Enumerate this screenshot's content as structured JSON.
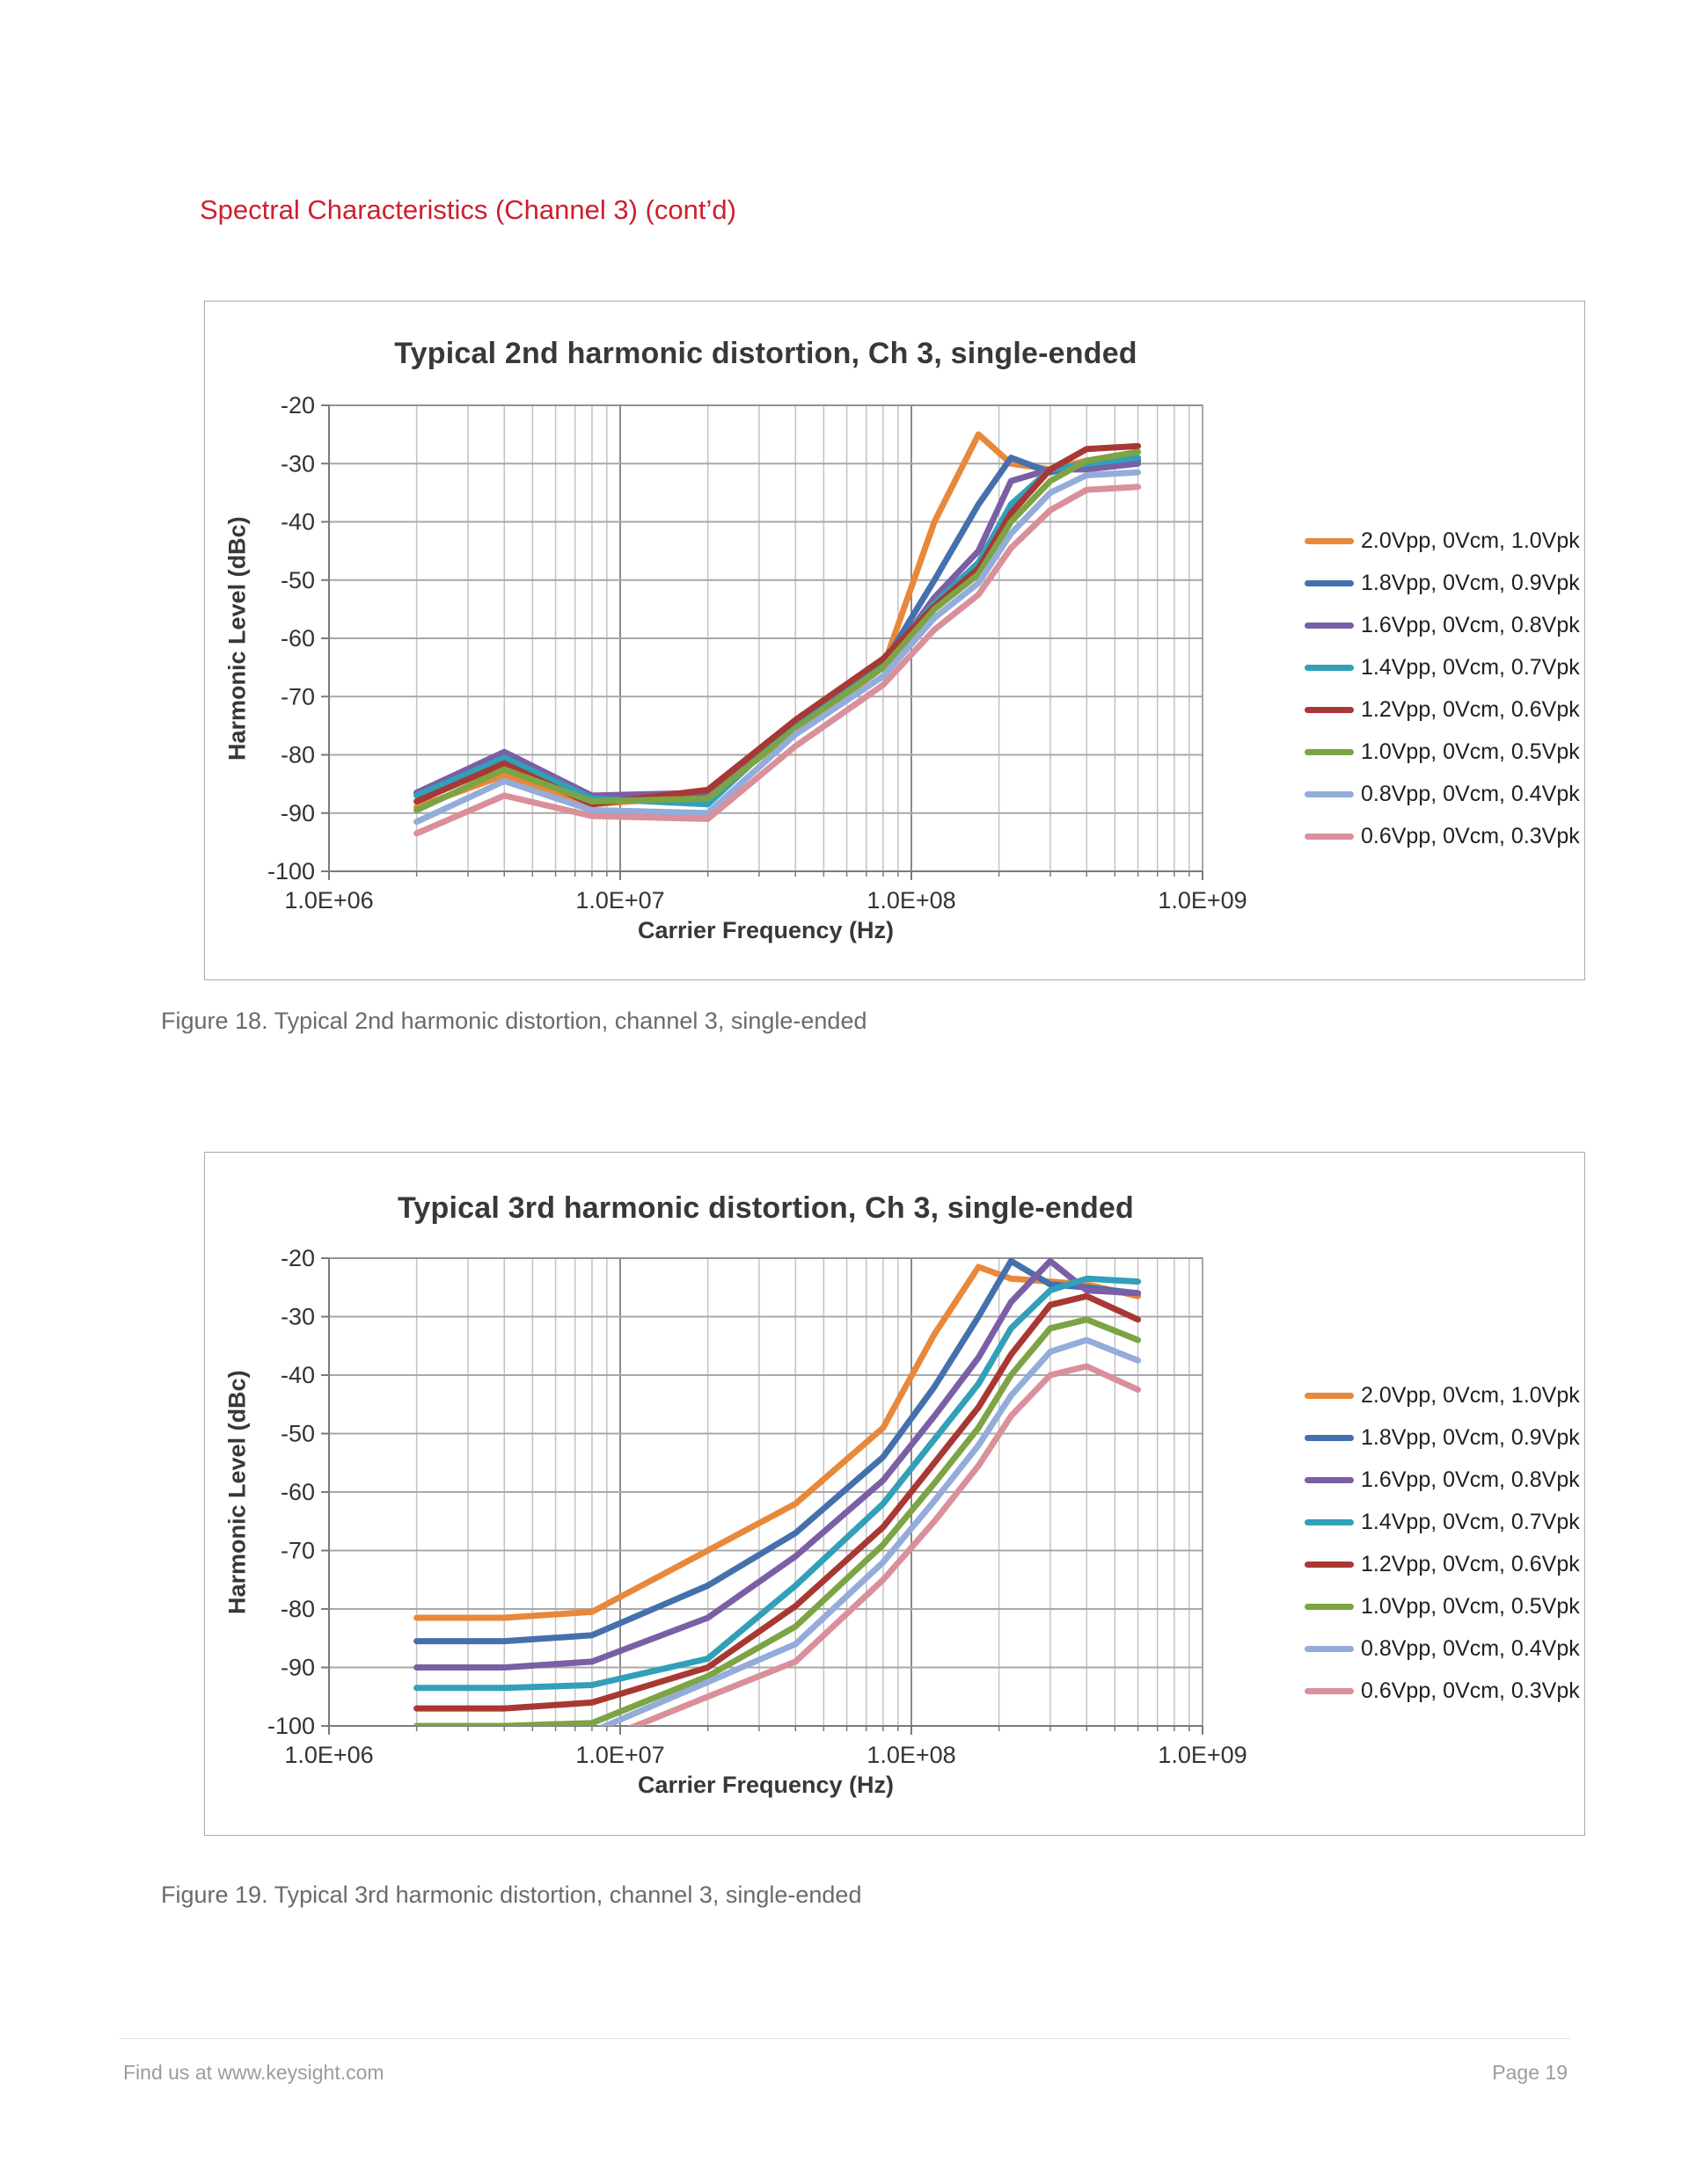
{
  "page": {
    "heading": "Spectral Characteristics (Channel 3) (cont’d)",
    "captions": [
      "Figure 18. Typical 2nd harmonic distortion, channel 3, single-ended",
      "Figure 19. Typical 3rd harmonic distortion, channel 3, single-ended"
    ],
    "footer_left": "Find us at www.keysight.com",
    "footer_right": "Page 19",
    "heading_color": "#CE1F2E",
    "caption_color": "#6A6A6A",
    "footer_color": "#9C9C9C"
  },
  "chart_data": [
    {
      "type": "line",
      "title": "Typical 2nd harmonic distortion, Ch 3, single-ended",
      "xlabel": "Carrier Frequency (Hz)",
      "ylabel": "Harmonic Level (dBc)",
      "x_scale": "log",
      "xlim": [
        1000000,
        1000000000
      ],
      "ylim": [
        -100,
        -20
      ],
      "grid": true,
      "legend_position": "right",
      "x_tick_values": [
        1000000,
        10000000,
        100000000,
        1000000000
      ],
      "x_tick_labels": [
        "1.0E+06",
        "1.0E+07",
        "1.0E+08",
        "1.0E+09"
      ],
      "y_tick_values": [
        -20,
        -30,
        -40,
        -50,
        -60,
        -70,
        -80,
        -90,
        -100
      ],
      "y_tick_labels": [
        "-20",
        "-30",
        "-40",
        "-50",
        "-60",
        "-70",
        "-80",
        "-90",
        "-100"
      ],
      "x": [
        2000000,
        4000000,
        8000000,
        20000000,
        40000000,
        80000000,
        120000000,
        170000000,
        220000000,
        300000000,
        400000000,
        600000000
      ],
      "series": [
        {
          "name": "2.0Vpp, 0Vcm, 1.0Vpk",
          "color": "#E8883A",
          "values": [
            -89,
            -83.5,
            -88.5,
            -87,
            -76,
            -65,
            -40,
            -25,
            -30,
            -31,
            -29.5,
            -29
          ]
        },
        {
          "name": "1.8Vpp, 0Vcm, 0.9Vpk",
          "color": "#4470AD",
          "values": [
            -86.5,
            -80,
            -87.5,
            -87,
            -74.5,
            -64.5,
            -50,
            -37,
            -29,
            -31.5,
            -30,
            -29.5
          ]
        },
        {
          "name": "1.6Vpp, 0Vcm, 0.8Vpk",
          "color": "#7B5FA5",
          "values": [
            -86.5,
            -79.5,
            -87,
            -86.5,
            -75,
            -65,
            -53,
            -45,
            -33,
            -31,
            -31,
            -30
          ]
        },
        {
          "name": "1.4Vpp, 0Vcm, 0.7Vpk",
          "color": "#31A0B8",
          "values": [
            -87,
            -80.5,
            -87.5,
            -88.5,
            -74.5,
            -64,
            -54,
            -47,
            -37,
            -31,
            -30,
            -29
          ]
        },
        {
          "name": "1.2Vpp, 0Vcm, 0.6Vpk",
          "color": "#A83833",
          "values": [
            -88,
            -81.5,
            -88.5,
            -86,
            -74,
            -63.5,
            -54.5,
            -48,
            -38.5,
            -31,
            -27.5,
            -27
          ]
        },
        {
          "name": "1.0Vpp, 0Vcm, 0.5Vpk",
          "color": "#7CA444",
          "values": [
            -89.5,
            -82.5,
            -88,
            -87.5,
            -75.5,
            -65,
            -55,
            -49,
            -40,
            -33,
            -29.5,
            -28
          ]
        },
        {
          "name": "0.8Vpp, 0Vcm, 0.4Vpk",
          "color": "#94ACD9",
          "values": [
            -91.5,
            -84.5,
            -89.5,
            -90,
            -76.5,
            -66.5,
            -56.5,
            -50.5,
            -42,
            -35,
            -32,
            -31.5
          ]
        },
        {
          "name": "0.6Vpp, 0Vcm, 0.3Vpk",
          "color": "#D9909A",
          "values": [
            -93.5,
            -87,
            -90.5,
            -91,
            -78.5,
            -68,
            -58.5,
            -52.5,
            -44.5,
            -38,
            -34.5,
            -34
          ]
        }
      ]
    },
    {
      "type": "line",
      "title": "Typical 3rd harmonic distortion, Ch 3, single-ended",
      "xlabel": "Carrier Frequency (Hz)",
      "ylabel": "Harmonic Level (dBc)",
      "x_scale": "log",
      "xlim": [
        1000000,
        1000000000
      ],
      "ylim": [
        -100,
        -20
      ],
      "grid": true,
      "legend_position": "right",
      "x_tick_values": [
        1000000,
        10000000,
        100000000,
        1000000000
      ],
      "x_tick_labels": [
        "1.0E+06",
        "1.0E+07",
        "1.0E+08",
        "1.0E+09"
      ],
      "y_tick_values": [
        -20,
        -30,
        -40,
        -50,
        -60,
        -70,
        -80,
        -90,
        -100
      ],
      "y_tick_labels": [
        "-20",
        "-30",
        "-40",
        "-50",
        "-60",
        "-70",
        "-80",
        "-90",
        "-100"
      ],
      "x": [
        2000000,
        4000000,
        8000000,
        20000000,
        40000000,
        80000000,
        120000000,
        170000000,
        220000000,
        300000000,
        400000000,
        600000000
      ],
      "series": [
        {
          "name": "2.0Vpp, 0Vcm, 1.0Vpk",
          "color": "#E8883A",
          "values": [
            -81.5,
            -81.5,
            -80.5,
            -70,
            -62,
            -49,
            -33,
            -21.5,
            -23.5,
            -24,
            -24.5,
            -26.5
          ]
        },
        {
          "name": "1.8Vpp, 0Vcm, 0.9Vpk",
          "color": "#4470AD",
          "values": [
            -85.5,
            -85.5,
            -84.5,
            -76,
            -67,
            -54,
            -42,
            -30,
            -20.5,
            -24.5,
            -25,
            -26
          ]
        },
        {
          "name": "1.6Vpp, 0Vcm, 0.8Vpk",
          "color": "#7B5FA5",
          "values": [
            -90,
            -90,
            -89,
            -81.5,
            -71,
            -58,
            -47,
            -37,
            -27.5,
            -20.5,
            -25.5,
            -26
          ]
        },
        {
          "name": "1.4Vpp, 0Vcm, 0.7Vpk",
          "color": "#31A0B8",
          "values": [
            -93.5,
            -93.5,
            -93,
            -88.5,
            -76,
            -62,
            -51,
            -41.5,
            -32,
            -25.5,
            -23.5,
            -24
          ]
        },
        {
          "name": "1.2Vpp, 0Vcm, 0.6Vpk",
          "color": "#A83833",
          "values": [
            -97,
            -97,
            -96,
            -90,
            -79.5,
            -66,
            -55,
            -45.5,
            -36.5,
            -28,
            -26.5,
            -30.5
          ]
        },
        {
          "name": "1.0Vpp, 0Vcm, 0.5Vpk",
          "color": "#7CA444",
          "values": [
            -100,
            -100,
            -99.5,
            -91.5,
            -83,
            -69,
            -58.5,
            -49,
            -40,
            -32,
            -30.5,
            -34
          ]
        },
        {
          "name": "0.8Vpp, 0Vcm, 0.4Vpk",
          "color": "#94ACD9",
          "values": [
            -103,
            -103,
            -101,
            -92.5,
            -86,
            -72,
            -61.5,
            -52,
            -43.5,
            -36,
            -34,
            -37.5
          ]
        },
        {
          "name": "0.6Vpp, 0Vcm, 0.3Vpk",
          "color": "#D9909A",
          "values": [
            -105,
            -105,
            -103,
            -95,
            -89,
            -75,
            -65,
            -55.5,
            -47,
            -40,
            -38.5,
            -42.5
          ]
        }
      ]
    }
  ],
  "chart_style": {
    "grid_minor_color": "#C3C3C3",
    "grid_major_color": "#8A8A8A",
    "grid_horizontal_color": "#A8A8A8",
    "axis_color": "#7A7A7A",
    "title_color": "#383838",
    "tick_label_color": "#333333"
  }
}
